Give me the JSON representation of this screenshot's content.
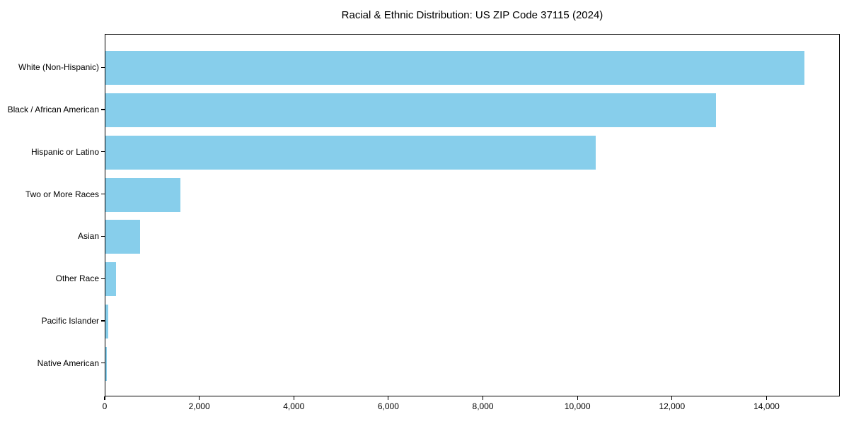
{
  "title": "Racial & Ethnic Distribution: US ZIP Code 37115 (2024)",
  "colors": {
    "bar": "#87CEEB",
    "axis": "#000000",
    "text": "#000000",
    "background": "#FFFFFF"
  },
  "chart_data": {
    "type": "bar",
    "orientation": "horizontal",
    "title": "Racial & Ethnic Distribution: US ZIP Code 37115 (2024)",
    "categories": [
      "White (Non-Hispanic)",
      "Black / African American",
      "Hispanic or Latino",
      "Two or More Races",
      "Asian",
      "Other Race",
      "Pacific Islander",
      "Native American"
    ],
    "values": [
      14780,
      12910,
      10370,
      1590,
      730,
      225,
      55,
      25
    ],
    "xlabel": "",
    "ylabel": "",
    "xlim": [
      0,
      15520
    ],
    "x_ticks": [
      0,
      2000,
      4000,
      6000,
      8000,
      10000,
      12000,
      14000
    ],
    "x_tick_labels": [
      "0",
      "2,000",
      "4,000",
      "6,000",
      "8,000",
      "10,000",
      "12,000",
      "14,000"
    ],
    "grid": false,
    "legend_position": "none",
    "bar_color": "#87CEEB"
  }
}
